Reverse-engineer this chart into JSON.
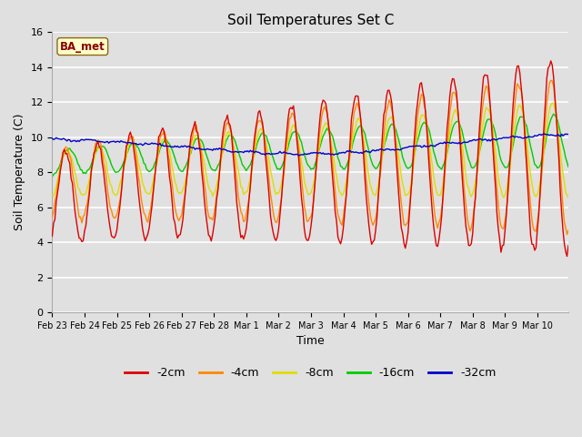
{
  "title": "Soil Temperatures Set C",
  "xlabel": "Time",
  "ylabel": "Soil Temperature (C)",
  "ylim": [
    0,
    16
  ],
  "yticks": [
    0,
    2,
    4,
    6,
    8,
    10,
    12,
    14,
    16
  ],
  "annotation": "BA_met",
  "series_colors": {
    "-2cm": "#dd0000",
    "-4cm": "#ff8800",
    "-8cm": "#dddd00",
    "-16cm": "#00cc00",
    "-32cm": "#0000cc"
  },
  "x_labels": [
    "Feb 23",
    "Feb 24",
    "Feb 25",
    "Feb 26",
    "Feb 27",
    "Feb 28",
    "Mar 1",
    "Mar 2",
    "Mar 3",
    "Mar 4",
    "Mar 5",
    "Mar 6",
    "Mar 7",
    "Mar 8",
    "Mar 9",
    "Mar 10"
  ],
  "pts_per_day": 24
}
